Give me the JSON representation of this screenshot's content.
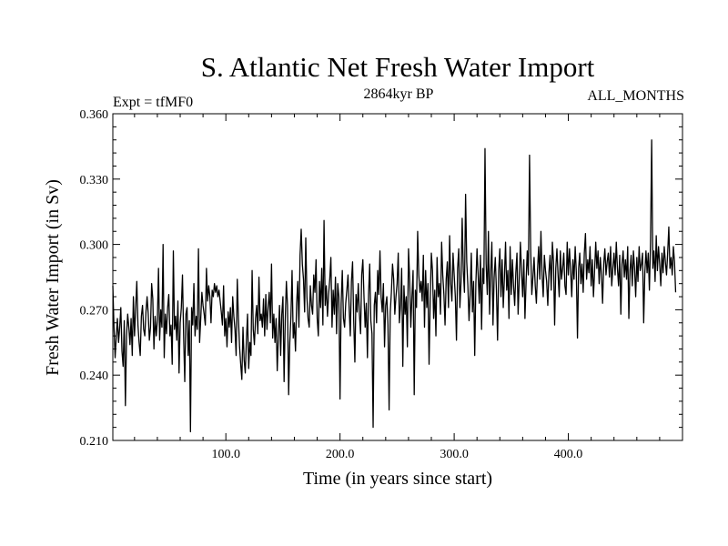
{
  "chart_data": {
    "type": "line",
    "title": "S. Atlantic Net Fresh Water Import",
    "subtitle_left": "Expt = tfMF0",
    "subtitle_center": "2864kyr BP",
    "subtitle_right": "ALL_MONTHS",
    "xlabel": "Time (in years since start)",
    "ylabel": "Fresh Water Import (in Sv)",
    "xlim": [
      1,
      500
    ],
    "ylim": [
      0.21,
      0.36
    ],
    "xticks": [
      100,
      200,
      300,
      400
    ],
    "xtick_labels": [
      "100.0",
      "200.0",
      "300.0",
      "400.0"
    ],
    "yticks": [
      0.21,
      0.24,
      0.27,
      0.3,
      0.33,
      0.36
    ],
    "ytick_labels": [
      "0.210",
      "0.240",
      "0.270",
      "0.300",
      "0.330",
      "0.360"
    ],
    "grid": false,
    "series": [
      {
        "name": "Fresh Water Import",
        "x_start": 1,
        "x_step": 1,
        "values": [
          0.281,
          0.262,
          0.248,
          0.258,
          0.266,
          0.255,
          0.262,
          0.271,
          0.251,
          0.244,
          0.265,
          0.226,
          0.258,
          0.268,
          0.262,
          0.254,
          0.266,
          0.249,
          0.276,
          0.258,
          0.271,
          0.283,
          0.263,
          0.255,
          0.249,
          0.267,
          0.272,
          0.261,
          0.258,
          0.269,
          0.276,
          0.268,
          0.256,
          0.262,
          0.282,
          0.275,
          0.252,
          0.267,
          0.258,
          0.265,
          0.289,
          0.256,
          0.27,
          0.262,
          0.3,
          0.248,
          0.268,
          0.259,
          0.271,
          0.277,
          0.258,
          0.263,
          0.245,
          0.297,
          0.261,
          0.267,
          0.256,
          0.274,
          0.241,
          0.264,
          0.271,
          0.286,
          0.258,
          0.237,
          0.268,
          0.271,
          0.249,
          0.265,
          0.214,
          0.271,
          0.263,
          0.282,
          0.258,
          0.267,
          0.261,
          0.298,
          0.255,
          0.266,
          0.278,
          0.272,
          0.268,
          0.263,
          0.289,
          0.274,
          0.281,
          0.276,
          0.264,
          0.279,
          0.276,
          0.282,
          0.278,
          0.281,
          0.276,
          0.279,
          0.274,
          0.269,
          0.263,
          0.281,
          0.258,
          0.266,
          0.253,
          0.269,
          0.262,
          0.271,
          0.255,
          0.276,
          0.267,
          0.261,
          0.249,
          0.284,
          0.266,
          0.253,
          0.245,
          0.238,
          0.262,
          0.247,
          0.241,
          0.256,
          0.268,
          0.243,
          0.255,
          0.249,
          0.288,
          0.261,
          0.254,
          0.266,
          0.272,
          0.259,
          0.285,
          0.265,
          0.268,
          0.262,
          0.275,
          0.258,
          0.277,
          0.261,
          0.271,
          0.278,
          0.264,
          0.291,
          0.257,
          0.268,
          0.255,
          0.266,
          0.242,
          0.258,
          0.272,
          0.249,
          0.268,
          0.276,
          0.237,
          0.265,
          0.283,
          0.272,
          0.231,
          0.255,
          0.267,
          0.288,
          0.257,
          0.264,
          0.251,
          0.273,
          0.283,
          0.262,
          0.295,
          0.307,
          0.291,
          0.284,
          0.269,
          0.303,
          0.276,
          0.266,
          0.262,
          0.281,
          0.272,
          0.268,
          0.286,
          0.278,
          0.293,
          0.266,
          0.258,
          0.283,
          0.271,
          0.289,
          0.263,
          0.311,
          0.272,
          0.281,
          0.267,
          0.277,
          0.284,
          0.294,
          0.262,
          0.279,
          0.268,
          0.285,
          0.259,
          0.282,
          0.276,
          0.229,
          0.273,
          0.288,
          0.266,
          0.262,
          0.273,
          0.279,
          0.286,
          0.271,
          0.258,
          0.283,
          0.292,
          0.265,
          0.246,
          0.277,
          0.269,
          0.282,
          0.268,
          0.259,
          0.286,
          0.293,
          0.276,
          0.262,
          0.273,
          0.248,
          0.277,
          0.291,
          0.265,
          0.259,
          0.216,
          0.272,
          0.278,
          0.264,
          0.288,
          0.277,
          0.297,
          0.276,
          0.269,
          0.282,
          0.253,
          0.272,
          0.276,
          0.263,
          0.224,
          0.269,
          0.278,
          0.291,
          0.284,
          0.268,
          0.276,
          0.282,
          0.296,
          0.264,
          0.272,
          0.289,
          0.244,
          0.281,
          0.268,
          0.276,
          0.253,
          0.298,
          0.284,
          0.262,
          0.276,
          0.288,
          0.231,
          0.279,
          0.271,
          0.306,
          0.286,
          0.278,
          0.283,
          0.274,
          0.295,
          0.262,
          0.288,
          0.271,
          0.282,
          0.245,
          0.274,
          0.296,
          0.288,
          0.266,
          0.279,
          0.258,
          0.294,
          0.276,
          0.282,
          0.268,
          0.301,
          0.286,
          0.277,
          0.263,
          0.284,
          0.292,
          0.271,
          0.304,
          0.282,
          0.274,
          0.296,
          0.286,
          0.276,
          0.256,
          0.289,
          0.298,
          0.271,
          0.283,
          0.312,
          0.288,
          0.278,
          0.323,
          0.292,
          0.281,
          0.265,
          0.277,
          0.296,
          0.269,
          0.283,
          0.249,
          0.282,
          0.298,
          0.286,
          0.273,
          0.295,
          0.261,
          0.289,
          0.282,
          0.344,
          0.291,
          0.277,
          0.306,
          0.268,
          0.287,
          0.301,
          0.263,
          0.285,
          0.294,
          0.279,
          0.256,
          0.288,
          0.298,
          0.276,
          0.293,
          0.271,
          0.285,
          0.301,
          0.279,
          0.288,
          0.266,
          0.299,
          0.277,
          0.293,
          0.281,
          0.272,
          0.287,
          0.296,
          0.268,
          0.284,
          0.301,
          0.288,
          0.276,
          0.293,
          0.266,
          0.283,
          0.297,
          0.286,
          0.341,
          0.298,
          0.277,
          0.285,
          0.294,
          0.281,
          0.273,
          0.288,
          0.299,
          0.284,
          0.306,
          0.286,
          0.276,
          0.295,
          0.288,
          0.283,
          0.272,
          0.287,
          0.295,
          0.279,
          0.301,
          0.292,
          0.263,
          0.289,
          0.298,
          0.286,
          0.276,
          0.297,
          0.284,
          0.289,
          0.296,
          0.281,
          0.277,
          0.301,
          0.286,
          0.298,
          0.288,
          0.276,
          0.293,
          0.284,
          0.299,
          0.287,
          0.257,
          0.289,
          0.296,
          0.282,
          0.291,
          0.278,
          0.296,
          0.305,
          0.284,
          0.293,
          0.287,
          0.299,
          0.281,
          0.293,
          0.276,
          0.288,
          0.301,
          0.289,
          0.297,
          0.282,
          0.294,
          0.286,
          0.273,
          0.291,
          0.298,
          0.286,
          0.292,
          0.296,
          0.285,
          0.299,
          0.281,
          0.289,
          0.296,
          0.286,
          0.301,
          0.289,
          0.281,
          0.295,
          0.268,
          0.291,
          0.297,
          0.285,
          0.293,
          0.284,
          0.299,
          0.266,
          0.288,
          0.295,
          0.281,
          0.297,
          0.289,
          0.276,
          0.294,
          0.283,
          0.299,
          0.288,
          0.291,
          0.296,
          0.264,
          0.287,
          0.297,
          0.287,
          0.296,
          0.279,
          0.301,
          0.348,
          0.289,
          0.297,
          0.283,
          0.304,
          0.288,
          0.299,
          0.291,
          0.281,
          0.296,
          0.287,
          0.299,
          0.292,
          0.286,
          0.296,
          0.308,
          0.289,
          0.294,
          0.286,
          0.299,
          0.292,
          0.278
        ]
      }
    ]
  }
}
